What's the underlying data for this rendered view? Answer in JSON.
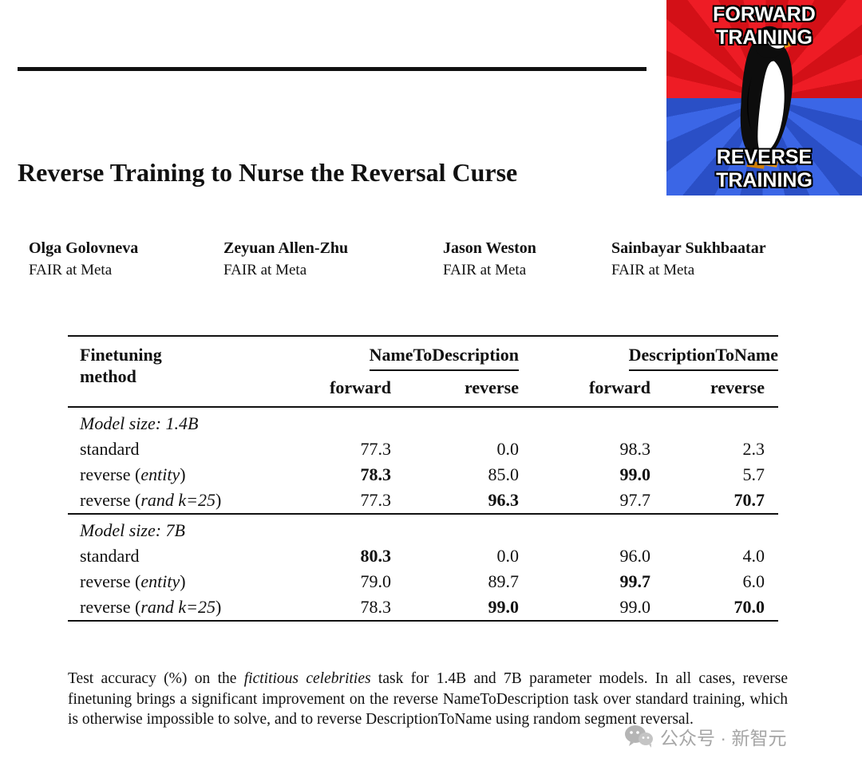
{
  "meme": {
    "top_label": "FORWARD TRAINING",
    "bottom_label": "REVERSE TRAINING",
    "colors": {
      "top_bg": "#ee1c25",
      "bottom_bg": "#3b66e6"
    }
  },
  "title": "Reverse Training to Nurse the Reversal Curse",
  "authors": [
    {
      "name": "Olga Golovneva",
      "affil": "FAIR at Meta"
    },
    {
      "name": "Zeyuan Allen-Zhu",
      "affil": "FAIR at Meta"
    },
    {
      "name": "Jason Weston",
      "affil": "FAIR at Meta"
    },
    {
      "name": "Sainbayar Sukhbaatar",
      "affil": "FAIR at Meta"
    }
  ],
  "table": {
    "method_header_line1": "Finetuning",
    "method_header_line2": "method",
    "groups": [
      "NameToDescription",
      "DescriptionToName"
    ],
    "subheaders": [
      "forward",
      "reverse",
      "forward",
      "reverse"
    ],
    "sections": [
      {
        "label": "Model size: 1.4B",
        "rows": [
          {
            "method": [
              {
                "t": "standard",
                "i": false
              }
            ],
            "values": [
              "77.3",
              "0.0",
              "98.3",
              "2.3"
            ],
            "bold": [
              false,
              false,
              false,
              false
            ]
          },
          {
            "method": [
              {
                "t": "reverse (",
                "i": false
              },
              {
                "t": "entity",
                "i": true
              },
              {
                "t": ")",
                "i": false
              }
            ],
            "values": [
              "78.3",
              "85.0",
              "99.0",
              "5.7"
            ],
            "bold": [
              true,
              false,
              true,
              false
            ]
          },
          {
            "method": [
              {
                "t": "reverse (",
                "i": false
              },
              {
                "t": "rand k=25",
                "i": true
              },
              {
                "t": ")",
                "i": false
              }
            ],
            "values": [
              "77.3",
              "96.3",
              "97.7",
              "70.7"
            ],
            "bold": [
              false,
              true,
              false,
              true
            ]
          }
        ]
      },
      {
        "label": "Model size: 7B",
        "rows": [
          {
            "method": [
              {
                "t": "standard",
                "i": false
              }
            ],
            "values": [
              "80.3",
              "0.0",
              "96.0",
              "4.0"
            ],
            "bold": [
              true,
              false,
              false,
              false
            ]
          },
          {
            "method": [
              {
                "t": "reverse (",
                "i": false
              },
              {
                "t": "entity",
                "i": true
              },
              {
                "t": ")",
                "i": false
              }
            ],
            "values": [
              "79.0",
              "89.7",
              "99.7",
              "6.0"
            ],
            "bold": [
              false,
              false,
              true,
              false
            ]
          },
          {
            "method": [
              {
                "t": "reverse (",
                "i": false
              },
              {
                "t": "rand k=25",
                "i": true
              },
              {
                "t": ")",
                "i": false
              }
            ],
            "values": [
              "78.3",
              "99.0",
              "99.0",
              "70.0"
            ],
            "bold": [
              false,
              true,
              false,
              true
            ]
          }
        ]
      }
    ]
  },
  "caption": {
    "parts": [
      {
        "t": "Test accuracy (%) on the ",
        "i": false
      },
      {
        "t": "fictitious celebrities",
        "i": true
      },
      {
        "t": " task for 1.4B and 7B parameter models. In all cases, reverse finetuning brings a significant improvement on the reverse NameToDescription task over standard training, which is otherwise impossible to solve, and to reverse DescriptionToName using random segment reversal.",
        "i": false
      }
    ]
  },
  "watermark": "公众号 · 新智元"
}
